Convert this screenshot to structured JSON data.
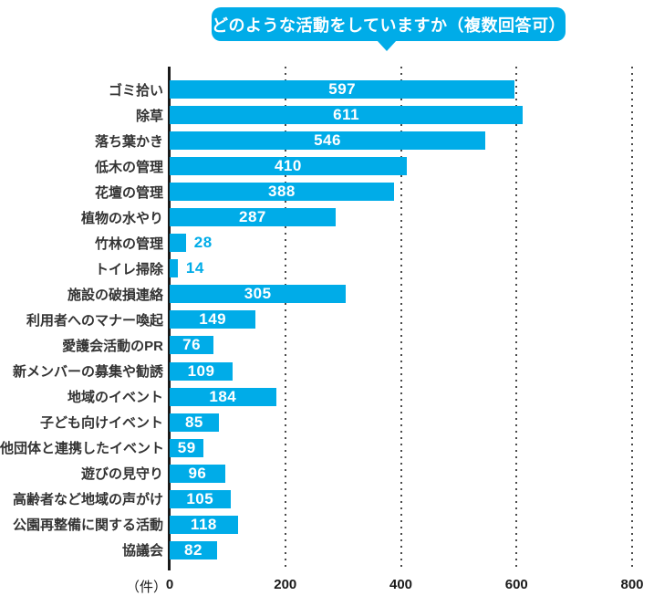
{
  "title": {
    "text": "どのような活動をしていますか（複数回答可）"
  },
  "colors": {
    "bar": "#00ACE8",
    "bubble": "#00ACE8",
    "title_text": "#FFFFFF",
    "category_label": "#333333",
    "value_inside": "#FFFFFF",
    "value_outside": "#00ACE8",
    "axis_line": "#1A1A1A",
    "gridline_dots": "#4A4A4A",
    "tick_label": "#1A1A1A"
  },
  "axis": {
    "unit_label": "（件）",
    "ticks": [
      0,
      200,
      400,
      600,
      800
    ],
    "max": 800,
    "gridlines_at": [
      200,
      400,
      600,
      800
    ]
  },
  "chart_data": {
    "type": "bar",
    "orientation": "horizontal",
    "title": "どのような活動をしていますか（複数回答可）",
    "xlabel": "（件）",
    "ylabel": "",
    "xlim": [
      0,
      800
    ],
    "grid": "dotted-vertical",
    "legend": "none",
    "inside_label_min_value": 50,
    "categories": [
      "ゴミ拾い",
      "除草",
      "落ち葉かき",
      "低木の管理",
      "花壇の管理",
      "植物の水やり",
      "竹林の管理",
      "トイレ掃除",
      "施設の破損連絡",
      "利用者へのマナー喚起",
      "愛護会活動のPR",
      "新メンバーの募集や勧誘",
      "地域のイベント",
      "子ども向けイベント",
      "他団体と連携したイベント",
      "遊びの見守り",
      "高齢者など地域の声がけ",
      "公園再整備に関する活動",
      "協議会"
    ],
    "values": [
      597,
      611,
      546,
      410,
      388,
      287,
      28,
      14,
      305,
      149,
      76,
      109,
      184,
      85,
      59,
      96,
      105,
      118,
      82
    ]
  }
}
